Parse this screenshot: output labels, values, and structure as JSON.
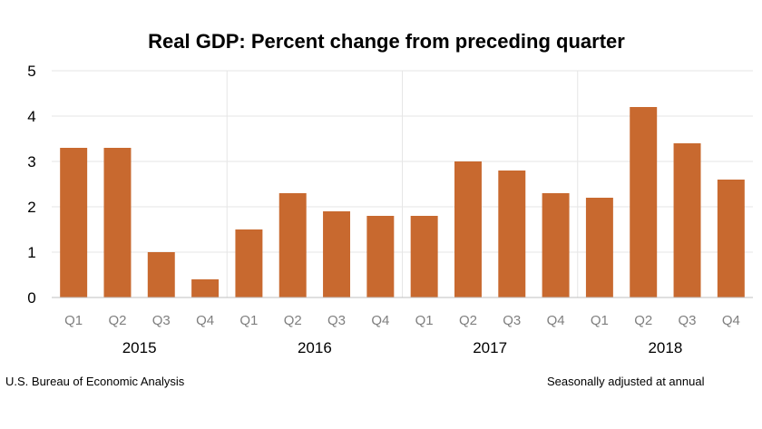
{
  "chart_data": {
    "type": "bar",
    "title": "Real GDP:  Percent change from preceding quarter",
    "xlabel": "",
    "ylabel": "",
    "ylim": [
      0,
      5
    ],
    "yticks": [
      0,
      1,
      2,
      3,
      4,
      5
    ],
    "grid": "horizontal",
    "bar_color": "#c8692f",
    "groups": [
      {
        "label": "2015",
        "categories": [
          "Q1",
          "Q2",
          "Q3",
          "Q4"
        ],
        "values": [
          3.3,
          3.3,
          1.0,
          0.4
        ]
      },
      {
        "label": "2016",
        "categories": [
          "Q1",
          "Q2",
          "Q3",
          "Q4"
        ],
        "values": [
          1.5,
          2.3,
          1.9,
          1.8
        ]
      },
      {
        "label": "2017",
        "categories": [
          "Q1",
          "Q2",
          "Q3",
          "Q4"
        ],
        "values": [
          1.8,
          3.0,
          2.8,
          2.3
        ]
      },
      {
        "label": "2018",
        "categories": [
          "Q1",
          "Q2",
          "Q3",
          "Q4"
        ],
        "values": [
          2.2,
          4.2,
          3.4,
          2.6
        ]
      }
    ]
  },
  "footer": {
    "source": "U.S. Bureau of Economic Analysis",
    "note": "Seasonally adjusted at annual"
  }
}
